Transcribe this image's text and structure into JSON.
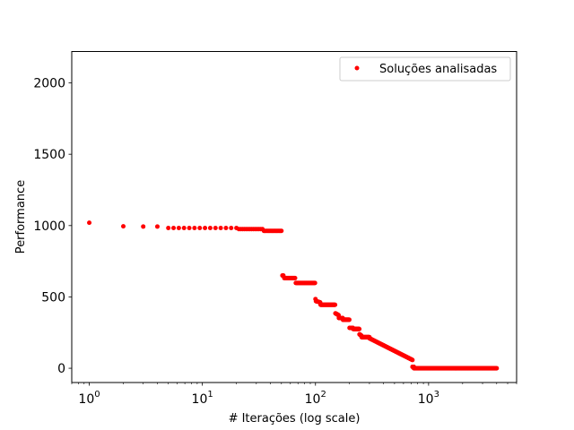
{
  "chart_data": {
    "type": "scatter",
    "title": "",
    "xlabel": "# Iterações (log scale)",
    "ylabel": "Performance",
    "xscale": "log",
    "xlim": [
      0.7,
      6000
    ],
    "ylim": [
      -100,
      2220
    ],
    "grid": false,
    "legend_position": "top-right",
    "x_ticks": [
      1,
      10,
      100,
      1000
    ],
    "x_tick_labels": [
      "10^0",
      "10^1",
      "10^2",
      "10^3"
    ],
    "y_ticks": [
      0,
      500,
      1000,
      1500,
      2000
    ],
    "y_tick_labels": [
      "0",
      "500",
      "1000",
      "1500",
      "2000"
    ],
    "series": [
      {
        "name": "Soluções analisadas",
        "color": "#ff0000",
        "marker": "point",
        "segments": [
          {
            "x": [
              1,
              1
            ],
            "y": [
              1020,
              1020
            ],
            "n": 1
          },
          {
            "x": [
              2,
              2
            ],
            "y": [
              995,
              995
            ],
            "n": 1
          },
          {
            "x": [
              3,
              4
            ],
            "y": [
              993,
              993
            ],
            "n": 2
          },
          {
            "x": [
              5,
              20
            ],
            "y": [
              983,
              983
            ],
            "n": 14
          },
          {
            "x": [
              21,
              34
            ],
            "y": [
              975,
              975
            ],
            "n": 14
          },
          {
            "x": [
              35,
              50
            ],
            "y": [
              963,
              963
            ],
            "n": 16
          },
          {
            "x": [
              51,
              52
            ],
            "y": [
              650,
              650
            ],
            "n": 2
          },
          {
            "x": [
              53,
              66
            ],
            "y": [
              632,
              632
            ],
            "n": 14
          },
          {
            "x": [
              67,
              99
            ],
            "y": [
              598,
              598
            ],
            "n": 33
          },
          {
            "x": [
              100,
              100
            ],
            "y": [
              485,
              485
            ],
            "n": 1
          },
          {
            "x": [
              101,
              110
            ],
            "y": [
              470,
              462
            ],
            "n": 10
          },
          {
            "x": [
              111,
              149
            ],
            "y": [
              445,
              445
            ],
            "n": 39
          },
          {
            "x": [
              150,
              160
            ],
            "y": [
              385,
              372
            ],
            "n": 11
          },
          {
            "x": [
              161,
              174
            ],
            "y": [
              352,
              352
            ],
            "n": 14
          },
          {
            "x": [
              175,
              199
            ],
            "y": [
              340,
              340
            ],
            "n": 25
          },
          {
            "x": [
              200,
              214
            ],
            "y": [
              283,
              283
            ],
            "n": 15
          },
          {
            "x": [
              215,
              244
            ],
            "y": [
              275,
              275
            ],
            "n": 30
          },
          {
            "x": [
              245,
              255
            ],
            "y": [
              238,
              228
            ],
            "n": 11
          },
          {
            "x": [
              256,
              300
            ],
            "y": [
              218,
              218
            ],
            "n": 45
          },
          {
            "x": [
              300,
              720
            ],
            "y": [
              210,
              58
            ],
            "n": 120
          },
          {
            "x": [
              721,
              740
            ],
            "y": [
              10,
              10
            ],
            "n": 20
          },
          {
            "x": [
              741,
              4000
            ],
            "y": [
              0,
              0
            ],
            "n": 200
          }
        ]
      }
    ]
  }
}
